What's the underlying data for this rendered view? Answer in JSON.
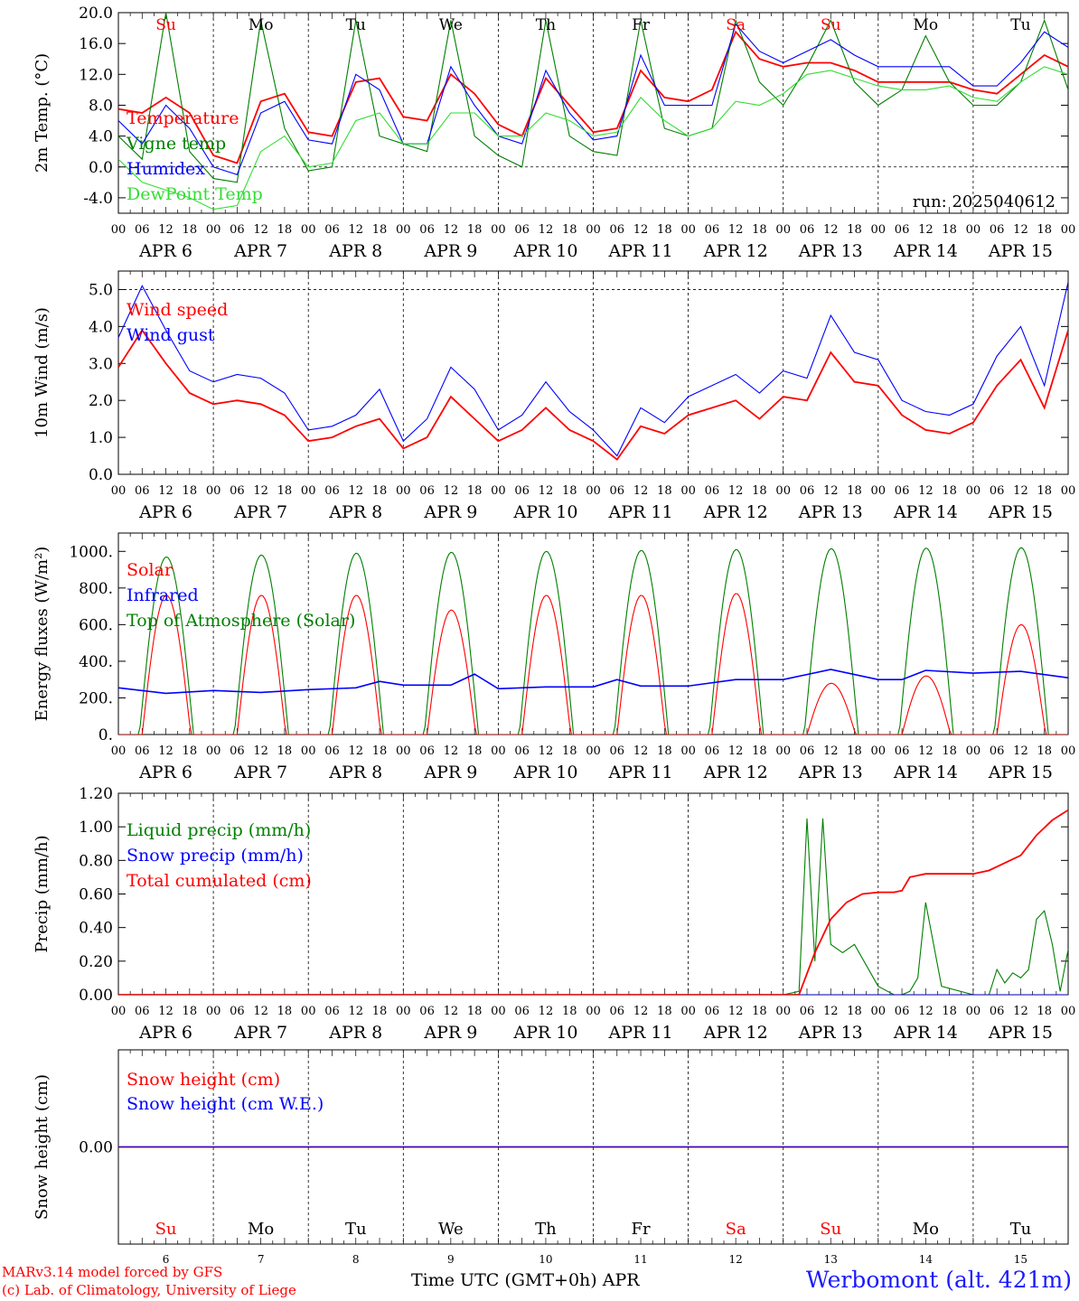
{
  "run_label": "run: 2025040612",
  "hour_ticks": [
    "00",
    "06",
    "12",
    "18"
  ],
  "final_hour_tick": "00",
  "month": "APR",
  "day_numbers": [
    "6",
    "7",
    "8",
    "9",
    "10",
    "11",
    "12",
    "13",
    "14",
    "15"
  ],
  "weekdays": [
    {
      "label": "Su",
      "color": "#ff0000"
    },
    {
      "label": "Mo",
      "color": "#000000"
    },
    {
      "label": "Tu",
      "color": "#000000"
    },
    {
      "label": "We",
      "color": "#000000"
    },
    {
      "label": "Th",
      "color": "#000000"
    },
    {
      "label": "Fr",
      "color": "#000000"
    },
    {
      "label": "Sa",
      "color": "#ff0000"
    },
    {
      "label": "Su",
      "color": "#ff0000"
    },
    {
      "label": "Mo",
      "color": "#000000"
    },
    {
      "label": "Tu",
      "color": "#000000"
    }
  ],
  "footer": {
    "model_line": "MARv3.14 model forced by GFS",
    "credit_line": "(c) Lab. of Climatology, University of Liege",
    "time_axis": "Time UTC (GMT+0h) APR",
    "station": "Werbomont (alt. 421m)"
  },
  "colors": {
    "red": "#ff0000",
    "blue": "#0000ff",
    "green": "#007f00",
    "lightgreen": "#33dd33"
  },
  "chart_data": [
    {
      "type": "line",
      "ylabel": "2m Temp. (°C)",
      "ylim": [
        -6,
        20
      ],
      "yticks": [
        "20.0",
        "16.0",
        "12.0",
        "8.0",
        "4.0",
        "0.0",
        "-4.0"
      ],
      "reference_line": 0,
      "x_unit": "hours since APR 6 00 UTC",
      "series": [
        {
          "name": "Temperature",
          "color": "#ff0000",
          "x": [
            0,
            6,
            12,
            18,
            24,
            30,
            36,
            42,
            48,
            54,
            60,
            66,
            72,
            78,
            84,
            90,
            96,
            102,
            108,
            114,
            120,
            126,
            132,
            138,
            144,
            150,
            156,
            162,
            168,
            174,
            180,
            186,
            192,
            198,
            204,
            210,
            216,
            222,
            228,
            234,
            240
          ],
          "y": [
            7.5,
            7,
            9,
            7,
            1.5,
            0.5,
            8.5,
            9.5,
            4.5,
            4,
            11,
            11.5,
            6.5,
            6,
            12,
            9.5,
            5.5,
            4,
            11.5,
            8,
            4.5,
            5,
            12.5,
            9,
            8.5,
            10,
            17.5,
            14,
            13,
            13.5,
            13.5,
            12.5,
            11,
            11,
            11,
            11,
            10,
            9.5,
            12,
            14.5,
            13
          ]
        },
        {
          "name": "Vigne temp",
          "color": "#007f00",
          "x": [
            0,
            6,
            12,
            18,
            24,
            30,
            36,
            42,
            48,
            54,
            60,
            66,
            72,
            78,
            84,
            90,
            96,
            102,
            108,
            114,
            120,
            126,
            132,
            138,
            144,
            150,
            156,
            162,
            168,
            174,
            180,
            186,
            192,
            198,
            204,
            210,
            216,
            222,
            228,
            234,
            240
          ],
          "y": [
            4,
            1,
            20,
            2,
            -1.5,
            -2,
            19,
            5,
            -0.5,
            0,
            19,
            4,
            3,
            2,
            19,
            4,
            1.5,
            0,
            19,
            4,
            2,
            1.5,
            19,
            5,
            4,
            5,
            19,
            11,
            8,
            13,
            19,
            11,
            8,
            10,
            17,
            11,
            8,
            8,
            11,
            19,
            10
          ]
        },
        {
          "name": "Humidex",
          "color": "#0000ff",
          "x": [
            0,
            6,
            12,
            18,
            24,
            30,
            36,
            42,
            48,
            54,
            60,
            66,
            72,
            78,
            84,
            90,
            96,
            102,
            108,
            114,
            120,
            126,
            132,
            138,
            144,
            150,
            156,
            162,
            168,
            174,
            180,
            186,
            192,
            198,
            204,
            210,
            216,
            222,
            228,
            234,
            240
          ],
          "y": [
            6,
            3,
            8,
            5,
            0,
            -1,
            7,
            8.5,
            3.5,
            3,
            12,
            10,
            3,
            3,
            13,
            8,
            4,
            3,
            12.5,
            7,
            3.5,
            4,
            14.5,
            8,
            8,
            8,
            18.5,
            15,
            13.5,
            15,
            16.5,
            14.5,
            13,
            13,
            13,
            13,
            10.5,
            10.5,
            13.5,
            17.5,
            15.5
          ]
        },
        {
          "name": "DewPoint Temp",
          "color": "#33dd33",
          "x": [
            0,
            6,
            12,
            18,
            24,
            30,
            36,
            42,
            48,
            54,
            60,
            66,
            72,
            78,
            84,
            90,
            96,
            102,
            108,
            114,
            120,
            126,
            132,
            138,
            144,
            150,
            156,
            162,
            168,
            174,
            180,
            186,
            192,
            198,
            204,
            210,
            216,
            222,
            228,
            234,
            240
          ],
          "y": [
            1,
            -2,
            -3,
            -4,
            -5.5,
            -5,
            2,
            4,
            0,
            0.5,
            6,
            7,
            3,
            3,
            7,
            7,
            4,
            4,
            7,
            6,
            4,
            4.5,
            9,
            6,
            4,
            5,
            8.5,
            8,
            9.5,
            12,
            12.5,
            11.5,
            10.5,
            10,
            10,
            10.5,
            9,
            8.5,
            11,
            13,
            12
          ]
        }
      ],
      "legend": "top-left"
    },
    {
      "type": "line",
      "ylabel": "10m Wind (m/s)",
      "ylim": [
        0,
        5.5
      ],
      "yticks": [
        "5.0",
        "4.0",
        "3.0",
        "2.0",
        "1.0",
        "0.0"
      ],
      "reference_line": 5,
      "x_unit": "hours since APR 6 00 UTC",
      "series": [
        {
          "name": "Wind speed",
          "color": "#ff0000",
          "x": [
            0,
            6,
            12,
            18,
            24,
            30,
            36,
            42,
            48,
            54,
            60,
            66,
            72,
            78,
            84,
            90,
            96,
            102,
            108,
            114,
            120,
            126,
            132,
            138,
            144,
            150,
            156,
            162,
            168,
            174,
            180,
            186,
            192,
            198,
            204,
            210,
            216,
            222,
            228,
            234,
            240
          ],
          "y": [
            2.9,
            3.9,
            3.0,
            2.2,
            1.9,
            2.0,
            1.9,
            1.6,
            0.9,
            1.0,
            1.3,
            1.5,
            0.7,
            1.0,
            2.1,
            1.5,
            0.9,
            1.2,
            1.8,
            1.2,
            0.9,
            0.4,
            1.3,
            1.1,
            1.6,
            1.8,
            2.0,
            1.5,
            2.1,
            2.0,
            3.3,
            2.5,
            2.4,
            1.6,
            1.2,
            1.1,
            1.4,
            2.4,
            3.1,
            1.8,
            3.9
          ]
        },
        {
          "name": "Wind gust",
          "color": "#0000ff",
          "x": [
            0,
            6,
            12,
            18,
            24,
            30,
            36,
            42,
            48,
            54,
            60,
            66,
            72,
            78,
            84,
            90,
            96,
            102,
            108,
            114,
            120,
            126,
            132,
            138,
            144,
            150,
            156,
            162,
            168,
            174,
            180,
            186,
            192,
            198,
            204,
            210,
            216,
            222,
            228,
            234,
            240
          ],
          "y": [
            3.7,
            5.1,
            3.9,
            2.8,
            2.5,
            2.7,
            2.6,
            2.2,
            1.2,
            1.3,
            1.6,
            2.3,
            0.9,
            1.5,
            2.9,
            2.3,
            1.2,
            1.6,
            2.5,
            1.7,
            1.2,
            0.5,
            1.8,
            1.4,
            2.1,
            2.4,
            2.7,
            2.2,
            2.8,
            2.6,
            4.3,
            3.3,
            3.1,
            2.0,
            1.7,
            1.6,
            1.9,
            3.2,
            4.0,
            2.4,
            5.2
          ]
        }
      ],
      "legend": "top-left"
    },
    {
      "type": "line",
      "ylabel": "Energy fluxes (W/m²)",
      "ylim": [
        0,
        1100
      ],
      "yticks": [
        "1000.",
        "800.",
        "600.",
        "400.",
        "200.",
        "0."
      ],
      "x_unit": "hours since APR 6 00 UTC",
      "daily_peaks": {
        "hours": [
          12,
          36,
          60,
          84,
          108,
          132,
          156,
          180,
          204,
          228
        ],
        "solar": [
          760,
          760,
          760,
          680,
          760,
          760,
          770,
          280,
          320,
          600
        ],
        "toa_solar": [
          970,
          980,
          990,
          995,
          1000,
          1005,
          1010,
          1015,
          1018,
          1020
        ]
      },
      "series": [
        {
          "name": "Solar",
          "color": "#ff0000"
        },
        {
          "name": "Infrared",
          "color": "#0000ff",
          "x": [
            0,
            12,
            24,
            36,
            48,
            60,
            66,
            72,
            84,
            90,
            96,
            108,
            120,
            126,
            132,
            144,
            156,
            168,
            180,
            192,
            198,
            204,
            216,
            228,
            240
          ],
          "y": [
            255,
            225,
            240,
            230,
            245,
            255,
            290,
            270,
            270,
            330,
            250,
            260,
            260,
            300,
            265,
            265,
            300,
            300,
            355,
            300,
            300,
            350,
            335,
            345,
            310
          ]
        },
        {
          "name": "Top of Atmosphere (Solar)",
          "color": "#007f00"
        }
      ],
      "legend": "top-left"
    },
    {
      "type": "line",
      "ylabel": "Precip (mm/h)",
      "ylim": [
        0,
        1.2
      ],
      "yticks": [
        "1.20",
        "1.00",
        "0.80",
        "0.60",
        "0.40",
        "0.20",
        "0.00"
      ],
      "x_unit": "hours since APR 6 00 UTC",
      "series": [
        {
          "name": "Liquid precip (mm/h)",
          "color": "#007f00",
          "x": [
            0,
            168,
            172,
            174,
            176,
            178,
            180,
            183,
            186,
            192,
            196,
            198,
            200,
            202,
            204,
            208,
            216,
            220,
            222,
            224,
            226,
            228,
            230,
            232,
            234,
            236,
            238,
            240
          ],
          "y": [
            0,
            0,
            0.02,
            1.05,
            0.2,
            1.05,
            0.3,
            0.25,
            0.3,
            0.05,
            0,
            0,
            0.02,
            0.1,
            0.55,
            0.05,
            0,
            0,
            0.15,
            0.07,
            0.13,
            0.1,
            0.15,
            0.45,
            0.5,
            0.3,
            0.02,
            0.27
          ]
        },
        {
          "name": "Snow precip (mm/h)",
          "color": "#0000ff",
          "x": [
            0,
            240
          ],
          "y": [
            0,
            0
          ]
        },
        {
          "name": "Total cumulated (cm)",
          "color": "#ff0000",
          "x": [
            0,
            172,
            176,
            180,
            184,
            188,
            192,
            196,
            198,
            200,
            204,
            216,
            220,
            228,
            232,
            236,
            240
          ],
          "y": [
            0,
            0,
            0.25,
            0.45,
            0.55,
            0.6,
            0.61,
            0.61,
            0.62,
            0.7,
            0.72,
            0.72,
            0.74,
            0.83,
            0.95,
            1.04,
            1.1
          ]
        }
      ],
      "legend": "top-left"
    },
    {
      "type": "line",
      "ylabel": "Snow height (cm)",
      "ylim": [
        -1,
        1
      ],
      "yticks": [
        "0.00"
      ],
      "x_unit": "hours since APR 6 00 UTC",
      "series": [
        {
          "name": "Snow height (cm)",
          "color": "#ff0000",
          "x": [
            0,
            240
          ],
          "y": [
            0,
            0
          ]
        },
        {
          "name": "Snow height (cm W.E.)",
          "color": "#0000ff",
          "x": [
            0,
            240
          ],
          "y": [
            0,
            0
          ]
        }
      ],
      "legend": "top-left"
    }
  ]
}
